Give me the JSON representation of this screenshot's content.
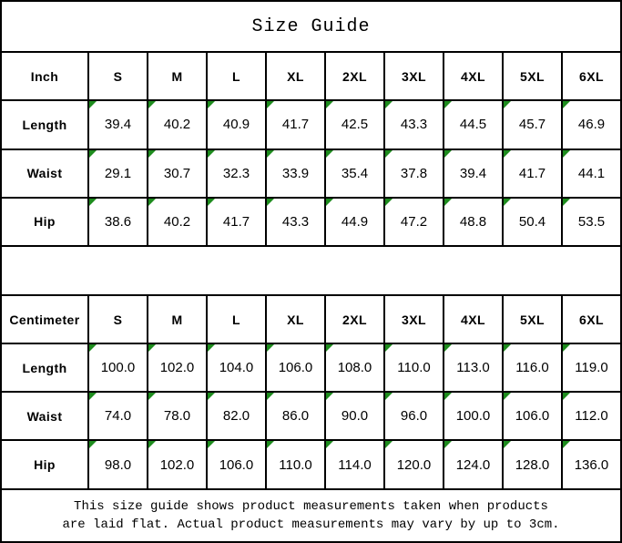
{
  "title": "Size Guide",
  "colors": {
    "flag_green": "#1e8c1e",
    "border_black": "#000000",
    "background": "#ffffff"
  },
  "inch": {
    "unit_label": "Inch",
    "sizes": [
      "S",
      "M",
      "L",
      "XL",
      "2XL",
      "3XL",
      "4XL",
      "5XL",
      "6XL"
    ],
    "rows": [
      {
        "label": "Length",
        "values": [
          "39.4",
          "40.2",
          "40.9",
          "41.7",
          "42.5",
          "43.3",
          "44.5",
          "45.7",
          "46.9"
        ]
      },
      {
        "label": "Waist",
        "values": [
          "29.1",
          "30.7",
          "32.3",
          "33.9",
          "35.4",
          "37.8",
          "39.4",
          "41.7",
          "44.1"
        ]
      },
      {
        "label": "Hip",
        "values": [
          "38.6",
          "40.2",
          "41.7",
          "43.3",
          "44.9",
          "47.2",
          "48.8",
          "50.4",
          "53.5"
        ]
      }
    ]
  },
  "cm": {
    "unit_label": "Centimeter",
    "sizes": [
      "S",
      "M",
      "L",
      "XL",
      "2XL",
      "3XL",
      "4XL",
      "5XL",
      "6XL"
    ],
    "rows": [
      {
        "label": "Length",
        "values": [
          "100.0",
          "102.0",
          "104.0",
          "106.0",
          "108.0",
          "110.0",
          "113.0",
          "116.0",
          "119.0"
        ]
      },
      {
        "label": "Waist",
        "values": [
          "74.0",
          "78.0",
          "82.0",
          "86.0",
          "90.0",
          "96.0",
          "100.0",
          "106.0",
          "112.0"
        ]
      },
      {
        "label": "Hip",
        "values": [
          "98.0",
          "102.0",
          "106.0",
          "110.0",
          "114.0",
          "120.0",
          "124.0",
          "128.0",
          "136.0"
        ]
      }
    ]
  },
  "footnote": {
    "line1": "This size guide shows product measurements taken when products",
    "line2": "are laid flat. Actual product measurements may vary by up to 3cm."
  }
}
